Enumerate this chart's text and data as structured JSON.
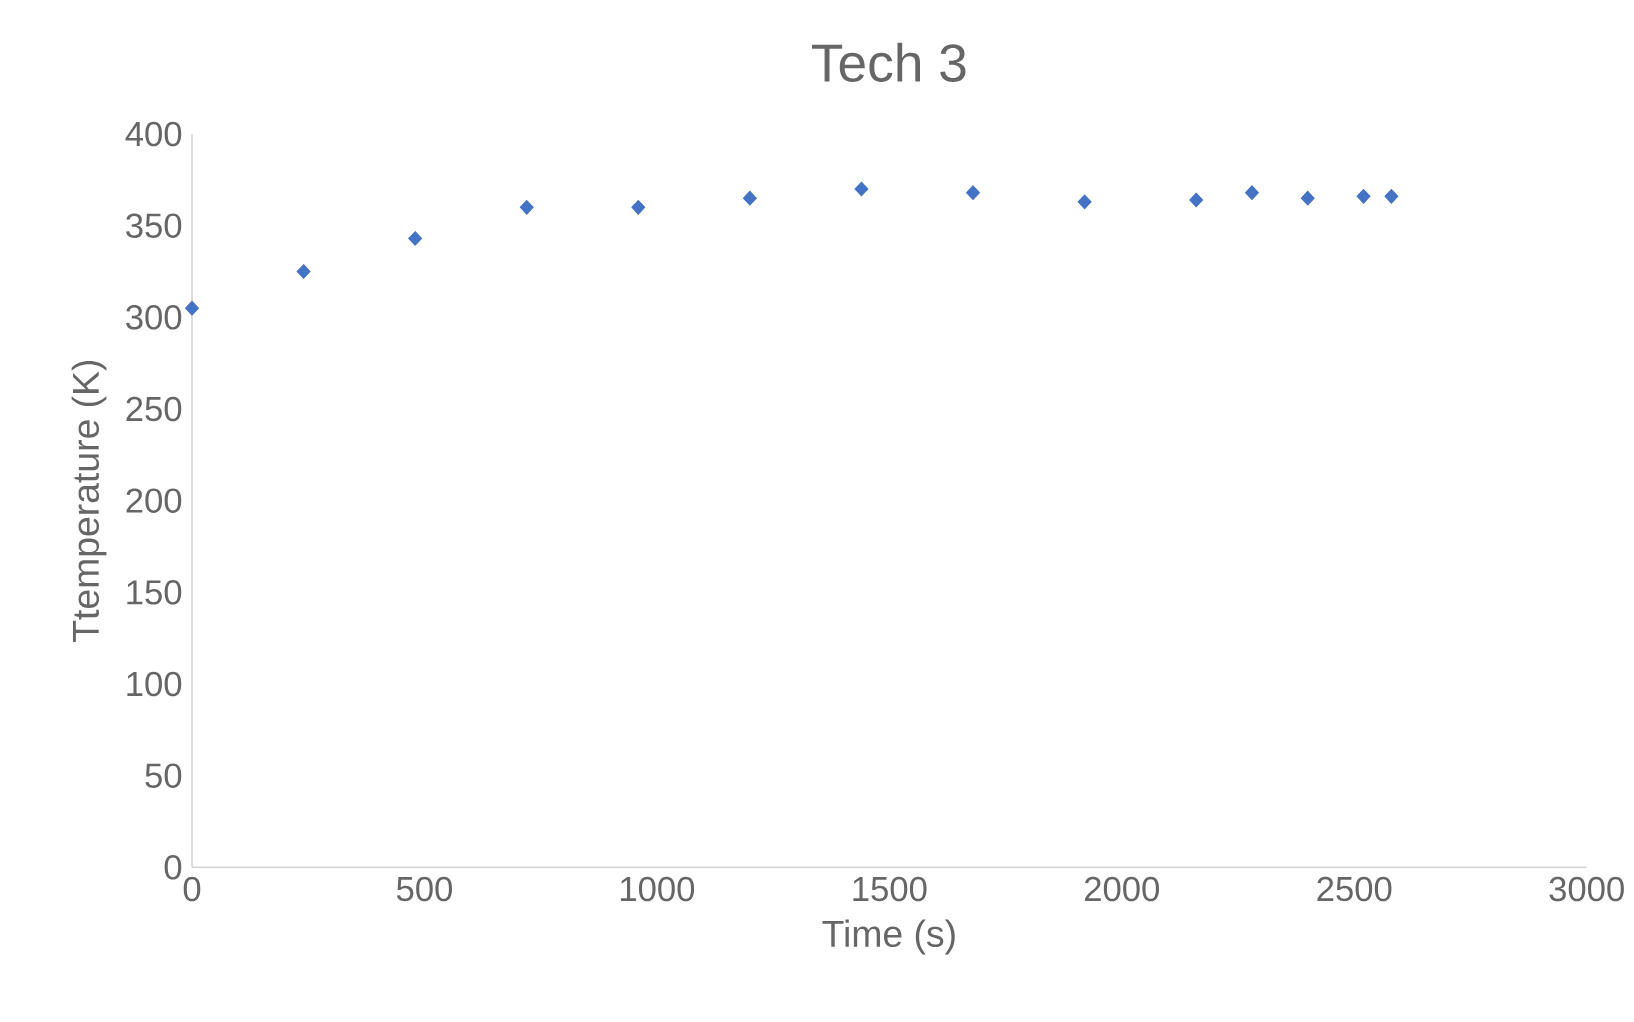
{
  "chart_data": {
    "type": "scatter",
    "title": "Tech 3",
    "xlabel": "Time (s)",
    "ylabel": "Ttemperature (K)",
    "x": [
      0,
      240,
      480,
      720,
      960,
      1200,
      1440,
      1680,
      1920,
      2160,
      2280,
      2400,
      2520,
      2580
    ],
    "series": [
      {
        "color": "#4472c4",
        "values": [
          305,
          325,
          343,
          360,
          360,
          365,
          370,
          368,
          363,
          364,
          368,
          365,
          366,
          366
        ]
      }
    ],
    "xlim": [
      0,
      3000
    ],
    "ylim": [
      0,
      400
    ],
    "xticks": [
      0,
      500,
      1000,
      1500,
      2000,
      2500,
      3000
    ],
    "yticks": [
      0,
      50,
      100,
      150,
      200,
      250,
      300,
      350,
      400
    ],
    "marker": "diamond",
    "grid": false
  }
}
